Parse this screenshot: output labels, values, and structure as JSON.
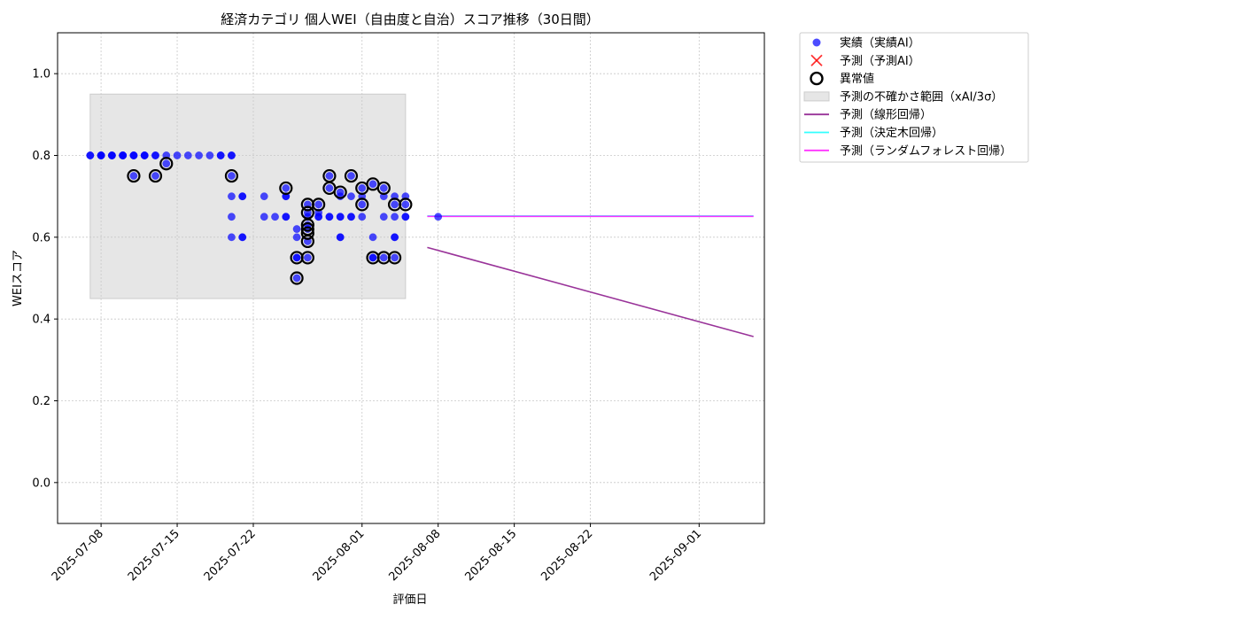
{
  "chart_data": {
    "type": "scatter",
    "title": "経済カテゴリ 個人WEI（自由度と自治）スコア推移（30日間）",
    "xlabel": "評価日",
    "ylabel": "WEIスコア",
    "xlim": [
      "2025-07-04",
      "2025-09-07"
    ],
    "ylim": [
      -0.1,
      1.1
    ],
    "xticks": [
      "2025-07-08",
      "2025-07-15",
      "2025-07-22",
      "2025-08-01",
      "2025-08-08",
      "2025-08-15",
      "2025-08-22",
      "2025-09-01"
    ],
    "yticks": [
      "0.0",
      "0.2",
      "0.4",
      "0.6",
      "0.8",
      "1.0"
    ],
    "grid": true,
    "legend_position": "outside-top-right",
    "uncertainty_band": {
      "x_start": "2025-07-07",
      "x_end": "2025-08-05",
      "y_low": 0.45,
      "y_high": 0.95
    },
    "series": [
      {
        "name": "実績（実績AI）",
        "kind": "scatter",
        "color": "#0000ff",
        "points": [
          [
            "2025-07-07",
            0.8
          ],
          [
            "2025-07-07",
            0.8
          ],
          [
            "2025-07-08",
            0.8
          ],
          [
            "2025-07-08",
            0.8
          ],
          [
            "2025-07-08",
            0.8
          ],
          [
            "2025-07-08",
            0.8
          ],
          [
            "2025-07-09",
            0.8
          ],
          [
            "2025-07-09",
            0.8
          ],
          [
            "2025-07-09",
            0.8
          ],
          [
            "2025-07-10",
            0.8
          ],
          [
            "2025-07-10",
            0.8
          ],
          [
            "2025-07-10",
            0.8
          ],
          [
            "2025-07-10",
            0.8
          ],
          [
            "2025-07-11",
            0.8
          ],
          [
            "2025-07-11",
            0.8
          ],
          [
            "2025-07-11",
            0.75
          ],
          [
            "2025-07-11",
            0.8
          ],
          [
            "2025-07-12",
            0.8
          ],
          [
            "2025-07-12",
            0.8
          ],
          [
            "2025-07-12",
            0.8
          ],
          [
            "2025-07-13",
            0.8
          ],
          [
            "2025-07-13",
            0.75
          ],
          [
            "2025-07-13",
            0.8
          ],
          [
            "2025-07-14",
            0.8
          ],
          [
            "2025-07-14",
            0.78
          ],
          [
            "2025-07-15",
            0.8
          ],
          [
            "2025-07-16",
            0.8
          ],
          [
            "2025-07-17",
            0.8
          ],
          [
            "2025-07-18",
            0.8
          ],
          [
            "2025-07-19",
            0.8
          ],
          [
            "2025-07-19",
            0.8
          ],
          [
            "2025-07-20",
            0.75
          ],
          [
            "2025-07-20",
            0.8
          ],
          [
            "2025-07-20",
            0.8
          ],
          [
            "2025-07-20",
            0.7
          ],
          [
            "2025-07-20",
            0.65
          ],
          [
            "2025-07-20",
            0.6
          ],
          [
            "2025-07-21",
            0.7
          ],
          [
            "2025-07-21",
            0.7
          ],
          [
            "2025-07-21",
            0.6
          ],
          [
            "2025-07-21",
            0.6
          ],
          [
            "2025-07-23",
            0.7
          ],
          [
            "2025-07-23",
            0.65
          ],
          [
            "2025-07-24",
            0.65
          ],
          [
            "2025-07-25",
            0.72
          ],
          [
            "2025-07-25",
            0.7
          ],
          [
            "2025-07-25",
            0.7
          ],
          [
            "2025-07-25",
            0.65
          ],
          [
            "2025-07-25",
            0.65
          ],
          [
            "2025-07-26",
            0.55
          ],
          [
            "2025-07-26",
            0.5
          ],
          [
            "2025-07-26",
            0.62
          ],
          [
            "2025-07-26",
            0.6
          ],
          [
            "2025-07-26",
            0.55
          ],
          [
            "2025-07-27",
            0.63
          ],
          [
            "2025-07-27",
            0.62
          ],
          [
            "2025-07-27",
            0.59
          ],
          [
            "2025-07-27",
            0.55
          ],
          [
            "2025-07-27",
            0.65
          ],
          [
            "2025-07-27",
            0.68
          ],
          [
            "2025-07-27",
            0.66
          ],
          [
            "2025-07-28",
            0.68
          ],
          [
            "2025-07-28",
            0.66
          ],
          [
            "2025-07-28",
            0.65
          ],
          [
            "2025-07-28",
            0.65
          ],
          [
            "2025-07-29",
            0.75
          ],
          [
            "2025-07-29",
            0.72
          ],
          [
            "2025-07-29",
            0.65
          ],
          [
            "2025-07-29",
            0.65
          ],
          [
            "2025-07-30",
            0.71
          ],
          [
            "2025-07-30",
            0.7
          ],
          [
            "2025-07-30",
            0.65
          ],
          [
            "2025-07-30",
            0.65
          ],
          [
            "2025-07-30",
            0.6
          ],
          [
            "2025-07-30",
            0.6
          ],
          [
            "2025-07-31",
            0.75
          ],
          [
            "2025-07-31",
            0.7
          ],
          [
            "2025-07-31",
            0.65
          ],
          [
            "2025-07-31",
            0.65
          ],
          [
            "2025-08-01",
            0.72
          ],
          [
            "2025-08-01",
            0.7
          ],
          [
            "2025-08-01",
            0.68
          ],
          [
            "2025-08-01",
            0.65
          ],
          [
            "2025-08-02",
            0.73
          ],
          [
            "2025-08-02",
            0.55
          ],
          [
            "2025-08-02",
            0.55
          ],
          [
            "2025-08-02",
            0.6
          ],
          [
            "2025-08-03",
            0.72
          ],
          [
            "2025-08-03",
            0.7
          ],
          [
            "2025-08-03",
            0.65
          ],
          [
            "2025-08-03",
            0.55
          ],
          [
            "2025-08-04",
            0.68
          ],
          [
            "2025-08-04",
            0.65
          ],
          [
            "2025-08-04",
            0.6
          ],
          [
            "2025-08-04",
            0.6
          ],
          [
            "2025-08-04",
            0.55
          ],
          [
            "2025-08-04",
            0.7
          ],
          [
            "2025-08-05",
            0.7
          ],
          [
            "2025-08-05",
            0.68
          ],
          [
            "2025-08-05",
            0.65
          ],
          [
            "2025-08-05",
            0.65
          ],
          [
            "2025-08-08",
            0.65
          ]
        ]
      },
      {
        "name": "予測（予測AI）",
        "kind": "scatter-x",
        "color": "#ff0000",
        "points": []
      },
      {
        "name": "異常値",
        "kind": "outlier",
        "color": "#000000",
        "points": [
          [
            "2025-07-11",
            0.75
          ],
          [
            "2025-07-13",
            0.75
          ],
          [
            "2025-07-14",
            0.78
          ],
          [
            "2025-07-20",
            0.75
          ],
          [
            "2025-07-25",
            0.72
          ],
          [
            "2025-07-26",
            0.55
          ],
          [
            "2025-07-26",
            0.5
          ],
          [
            "2025-07-27",
            0.63
          ],
          [
            "2025-07-27",
            0.62
          ],
          [
            "2025-07-27",
            0.61
          ],
          [
            "2025-07-27",
            0.59
          ],
          [
            "2025-07-27",
            0.55
          ],
          [
            "2025-07-27",
            0.68
          ],
          [
            "2025-07-27",
            0.66
          ],
          [
            "2025-07-28",
            0.68
          ],
          [
            "2025-07-29",
            0.75
          ],
          [
            "2025-07-29",
            0.72
          ],
          [
            "2025-07-30",
            0.71
          ],
          [
            "2025-07-31",
            0.75
          ],
          [
            "2025-08-01",
            0.72
          ],
          [
            "2025-08-01",
            0.68
          ],
          [
            "2025-08-02",
            0.73
          ],
          [
            "2025-08-02",
            0.55
          ],
          [
            "2025-08-03",
            0.72
          ],
          [
            "2025-08-03",
            0.55
          ],
          [
            "2025-08-04",
            0.68
          ],
          [
            "2025-08-04",
            0.55
          ],
          [
            "2025-08-05",
            0.68
          ]
        ]
      },
      {
        "name": "予測の不確かさ範囲（xAI/3σ）",
        "kind": "band",
        "color": "#e6e6e6"
      },
      {
        "name": "予測（線形回帰）",
        "kind": "line",
        "color": "#993399",
        "points": [
          [
            "2025-08-07",
            0.575
          ],
          [
            "2025-09-06",
            0.357
          ]
        ]
      },
      {
        "name": "予測（決定木回帰）",
        "kind": "line",
        "color": "#33ffff",
        "points": [
          [
            "2025-08-07",
            0.652
          ],
          [
            "2025-09-06",
            0.652
          ]
        ]
      },
      {
        "name": "予測（ランダムフォレスト回帰）",
        "kind": "line",
        "color": "#ff33ff",
        "points": [
          [
            "2025-08-07",
            0.651
          ],
          [
            "2025-09-06",
            0.651
          ]
        ]
      }
    ]
  }
}
